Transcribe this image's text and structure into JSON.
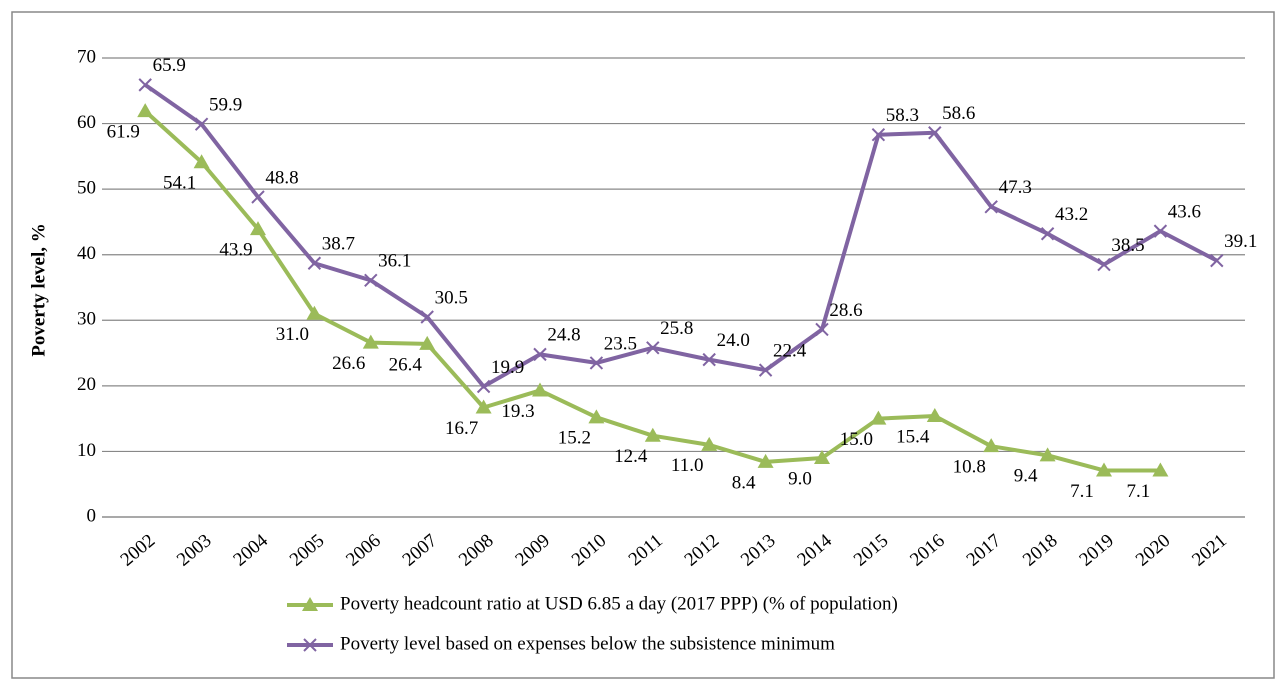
{
  "chart_data": {
    "type": "line",
    "y_label": "Poverty level, %",
    "categories": [
      "2002",
      "2003",
      "2004",
      "2005",
      "2006",
      "2007",
      "2008",
      "2009",
      "2010",
      "2011",
      "2012",
      "2013",
      "2014",
      "2015",
      "2016",
      "2017",
      "2018",
      "2019",
      "2020",
      "2021"
    ],
    "series": [
      {
        "name": "Poverty headcount ratio at USD 6.85 a day (2017 PPP) (% of population)",
        "color": "#9bbb59",
        "marker": "triangle",
        "values": [
          61.9,
          54.1,
          43.9,
          31.0,
          26.6,
          26.4,
          16.7,
          19.3,
          15.2,
          12.4,
          11.0,
          8.4,
          9.0,
          15.0,
          15.4,
          10.8,
          9.4,
          7.1,
          7.1,
          null
        ],
        "value_labels": [
          "61.9",
          "54.1",
          "43.9",
          "31.0",
          "26.6",
          "26.4",
          "16.7",
          "19.3",
          "15.2",
          "12.4",
          "11.0",
          "8.4",
          "9.0",
          "15.0",
          "15.4",
          "10.8",
          "9.4",
          "7.1",
          "7.1",
          null
        ]
      },
      {
        "name": "Poverty level based on expenses below the subsistence minimum",
        "color": "#8064a2",
        "marker": "x",
        "values": [
          65.9,
          59.9,
          48.8,
          38.7,
          36.1,
          30.5,
          19.9,
          24.8,
          23.5,
          25.8,
          24.0,
          22.4,
          28.6,
          58.3,
          58.6,
          47.3,
          43.2,
          38.5,
          43.6,
          39.1
        ],
        "value_labels": [
          "65.9",
          "59.9",
          "48.8",
          "38.7",
          "36.1",
          "30.5",
          "19.9",
          "24.8",
          "23.5",
          "25.8",
          "24.0",
          "22.4",
          "28.6",
          "58.3",
          "58.6",
          "47.3",
          "43.2",
          "38.5",
          "43.6",
          "39.1"
        ]
      }
    ],
    "ylim": [
      0,
      70
    ],
    "yticks": [
      0,
      10,
      20,
      30,
      40,
      50,
      60,
      70
    ],
    "grid": true,
    "legend": "bottom"
  }
}
